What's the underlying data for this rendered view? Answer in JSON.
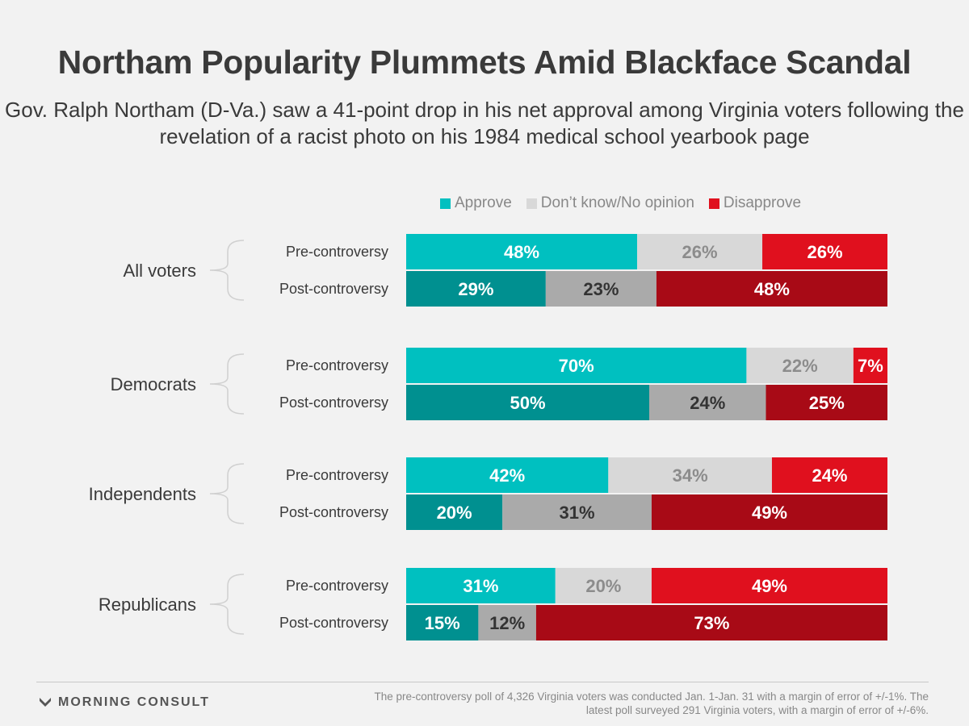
{
  "chart_data": {
    "type": "bar",
    "orientation": "horizontal-stacked-100",
    "title": "Northam Popularity Plummets Amid Blackface Scandal",
    "subtitle": "Gov. Ralph Northam (D-Va.) saw a 41-point drop in his net approval among Virginia voters following the revelation of a racist photo on his 1984 medical school yearbook page",
    "legend": [
      {
        "name": "Approve",
        "color": "#00c0c0"
      },
      {
        "name": "Don’t know/No opinion",
        "color": "#d8d8d8"
      },
      {
        "name": "Disapprove",
        "color": "#e0101e"
      }
    ],
    "groups": [
      {
        "name": "All voters",
        "rows": [
          {
            "label": "Pre-controversy",
            "values": [
              48,
              26,
              26
            ],
            "value_labels": [
              "48%",
              "26%",
              "26%"
            ]
          },
          {
            "label": "Post-controversy",
            "values": [
              29,
              23,
              48
            ],
            "value_labels": [
              "29%",
              "23%",
              "48%"
            ]
          }
        ]
      },
      {
        "name": "Democrats",
        "rows": [
          {
            "label": "Pre-controversy",
            "values": [
              70,
              22,
              7
            ],
            "value_labels": [
              "70%",
              "22%",
              "7%"
            ]
          },
          {
            "label": "Post-controversy",
            "values": [
              50,
              24,
              25
            ],
            "value_labels": [
              "50%",
              "24%",
              "25%"
            ]
          }
        ]
      },
      {
        "name": "Independents",
        "rows": [
          {
            "label": "Pre-controversy",
            "values": [
              42,
              34,
              24
            ],
            "value_labels": [
              "42%",
              "34%",
              "24%"
            ]
          },
          {
            "label": "Post-controversy",
            "values": [
              20,
              31,
              49
            ],
            "value_labels": [
              "20%",
              "31%",
              "49%"
            ]
          }
        ]
      },
      {
        "name": "Republicans",
        "rows": [
          {
            "label": "Pre-controversy",
            "values": [
              31,
              20,
              49
            ],
            "value_labels": [
              "31%",
              "20%",
              "49%"
            ]
          },
          {
            "label": "Post-controversy",
            "values": [
              15,
              12,
              73
            ],
            "value_labels": [
              "15%",
              "12%",
              "73%"
            ]
          }
        ]
      }
    ],
    "colors": {
      "pre": [
        "#00c0c0",
        "#d8d8d8",
        "#e0101e"
      ],
      "post": [
        "#009090",
        "#aaaaaa",
        "#a80a16"
      ],
      "pre_text": [
        "#ffffff",
        "#8c8c8c",
        "#ffffff"
      ],
      "post_text": [
        "#ffffff",
        "#333333",
        "#ffffff"
      ]
    }
  },
  "footer": {
    "brand": "MORNING CONSULT",
    "note": "The pre-controversy poll of 4,326 Virginia voters was conducted Jan. 1-Jan. 31 with a margin of error of +/-1%. The latest poll surveyed 291 Virginia voters, with a margin of error of +/-6%."
  }
}
